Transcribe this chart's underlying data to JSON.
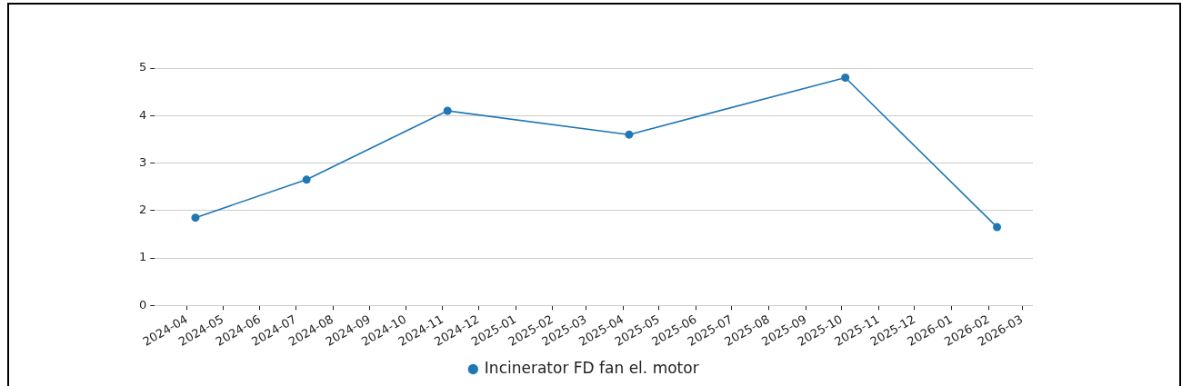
{
  "chart_data": {
    "type": "line",
    "x": [
      "2024-04-08",
      "2024-07-10",
      "2024-11-05",
      "2025-04-06",
      "2025-10-04",
      "2026-02-08"
    ],
    "series": [
      {
        "name": "Incinerator FD fan el. motor",
        "color": "#1f77b4",
        "values": [
          1.85,
          2.65,
          4.1,
          3.6,
          4.8,
          1.65
        ]
      }
    ],
    "xlim": [
      "2024-03-05",
      "2026-03-10"
    ],
    "xticks": [
      "2024-04",
      "2024-05",
      "2024-06",
      "2024-07",
      "2024-08",
      "2024-09",
      "2024-10",
      "2024-11",
      "2024-12",
      "2025-01",
      "2025-02",
      "2025-03",
      "2025-04",
      "2025-05",
      "2025-06",
      "2025-07",
      "2025-08",
      "2025-09",
      "2025-10",
      "2025-11",
      "2025-12",
      "2026-01",
      "2026-02",
      "2026-03"
    ],
    "ylim": [
      0,
      5
    ],
    "yticks": [
      0,
      1,
      2,
      3,
      4,
      5
    ],
    "grid": "y",
    "legend": "bottom",
    "marker": "circle",
    "line_style": "solid"
  }
}
